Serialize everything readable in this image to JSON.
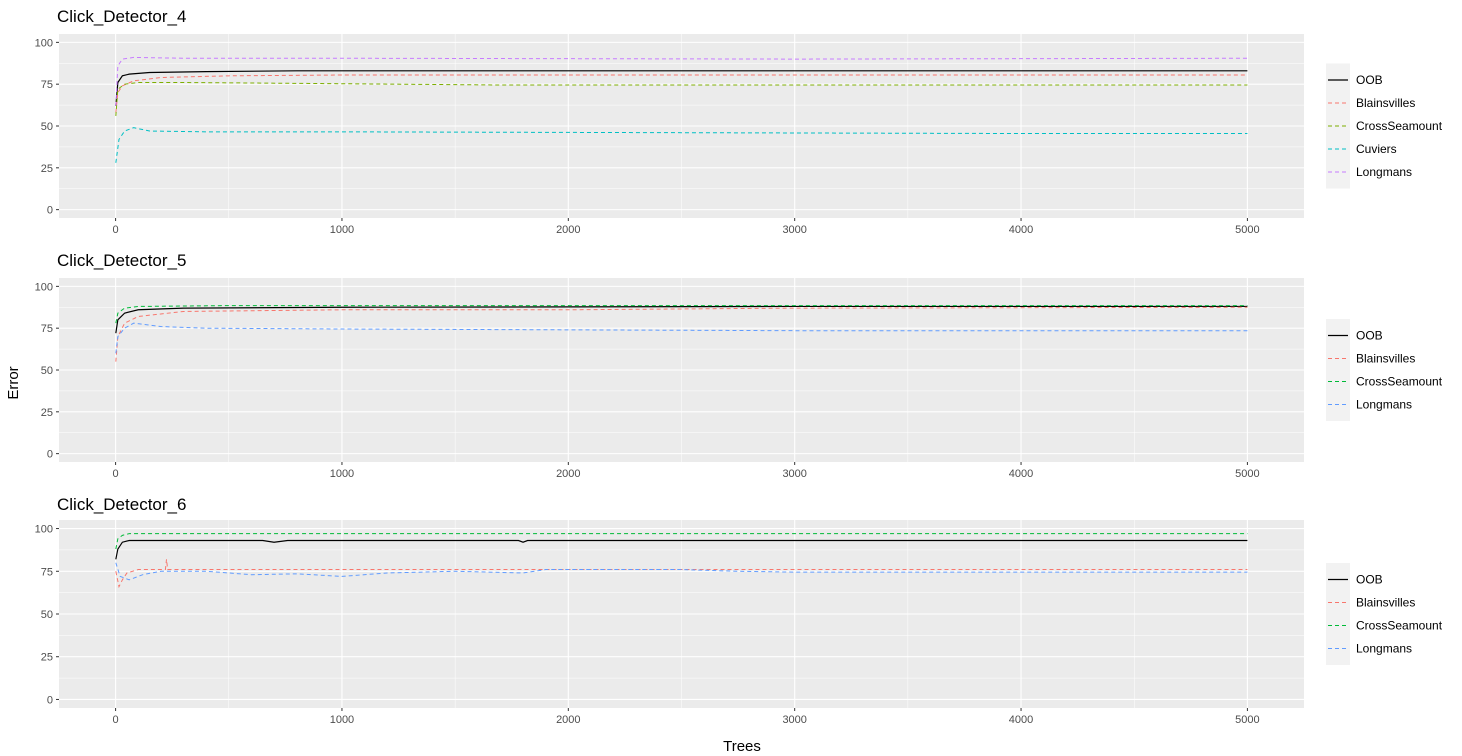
{
  "axes": {
    "xlabel": "Trees",
    "ylabel": "Error"
  },
  "colors": {
    "OOB": "#000000",
    "Blainsvilles": "#F8766D",
    "CrossSeamount": "#7CAE00",
    "CrossSeamount_3class": "#00BA38",
    "Cuviers": "#00BFC4",
    "Longmans": "#C77CFF",
    "Longmans_3class": "#619CFF",
    "panel_bg": "#EBEBEB",
    "grid": "#FFFFFF"
  },
  "chart_data": [
    {
      "type": "line",
      "title": "Click_Detector_4",
      "xlim": [
        -250,
        5250
      ],
      "ylim": [
        -5,
        105
      ],
      "x_ticks": [
        0,
        1000,
        2000,
        3000,
        4000,
        5000
      ],
      "y_ticks": [
        0,
        25,
        50,
        75,
        100
      ],
      "x_tick_labels": [
        "0",
        "1000",
        "2000",
        "3000",
        "4000",
        "5000"
      ],
      "y_tick_labels": [
        "0",
        "25",
        "50",
        "75",
        "100"
      ],
      "legend": [
        "OOB",
        "Blainsvilles",
        "CrossSeamount",
        "Cuviers",
        "Longmans"
      ],
      "series": [
        {
          "name": "OOB",
          "color": "#000000",
          "dash": "solid",
          "points": [
            [
              1,
              62
            ],
            [
              10,
              76
            ],
            [
              30,
              80
            ],
            [
              60,
              81
            ],
            [
              150,
              82
            ],
            [
              400,
              82.5
            ],
            [
              800,
              83
            ],
            [
              1500,
              83
            ],
            [
              5000,
              83
            ]
          ]
        },
        {
          "name": "Blainsvilles",
          "color": "#F8766D",
          "dash": "dashed",
          "points": [
            [
              1,
              58
            ],
            [
              10,
              70
            ],
            [
              30,
              74
            ],
            [
              80,
              77
            ],
            [
              200,
              79
            ],
            [
              500,
              80
            ],
            [
              1000,
              80.5
            ],
            [
              5000,
              80.5
            ]
          ]
        },
        {
          "name": "CrossSeamount",
          "color": "#7CAE00",
          "dash": "dashed",
          "points": [
            [
              1,
              56
            ],
            [
              10,
              72
            ],
            [
              40,
              75
            ],
            [
              100,
              76
            ],
            [
              300,
              76
            ],
            [
              800,
              75.5
            ],
            [
              1700,
              74.5
            ],
            [
              3000,
              74.5
            ],
            [
              5000,
              74.5
            ]
          ]
        },
        {
          "name": "Cuviers",
          "color": "#00BFC4",
          "dash": "dashed",
          "points": [
            [
              1,
              28
            ],
            [
              15,
              42
            ],
            [
              40,
              47
            ],
            [
              80,
              49
            ],
            [
              150,
              47
            ],
            [
              400,
              46.5
            ],
            [
              1000,
              46.5
            ],
            [
              2500,
              46
            ],
            [
              4000,
              45.5
            ],
            [
              5000,
              45.5
            ]
          ]
        },
        {
          "name": "Longmans",
          "color": "#C77CFF",
          "dash": "dashed",
          "points": [
            [
              1,
              62
            ],
            [
              10,
              86
            ],
            [
              30,
              90
            ],
            [
              80,
              91
            ],
            [
              300,
              90.5
            ],
            [
              1000,
              90.5
            ],
            [
              3000,
              90
            ],
            [
              5000,
              90.5
            ]
          ]
        }
      ]
    },
    {
      "type": "line",
      "title": "Click_Detector_5",
      "xlim": [
        -250,
        5250
      ],
      "ylim": [
        -5,
        105
      ],
      "x_ticks": [
        0,
        1000,
        2000,
        3000,
        4000,
        5000
      ],
      "y_ticks": [
        0,
        25,
        50,
        75,
        100
      ],
      "x_tick_labels": [
        "0",
        "1000",
        "2000",
        "3000",
        "4000",
        "5000"
      ],
      "y_tick_labels": [
        "0",
        "25",
        "50",
        "75",
        "100"
      ],
      "legend": [
        "OOB",
        "Blainsvilles",
        "CrossSeamount",
        "Longmans"
      ],
      "series": [
        {
          "name": "OOB",
          "color": "#000000",
          "dash": "solid",
          "points": [
            [
              1,
              72
            ],
            [
              10,
              80
            ],
            [
              40,
              84
            ],
            [
              100,
              86
            ],
            [
              300,
              87
            ],
            [
              1000,
              87.5
            ],
            [
              3000,
              88
            ],
            [
              5000,
              88
            ]
          ]
        },
        {
          "name": "Blainsvilles",
          "color": "#F8766D",
          "dash": "dashed",
          "points": [
            [
              1,
              55
            ],
            [
              10,
              70
            ],
            [
              40,
              78
            ],
            [
              100,
              82
            ],
            [
              300,
              85
            ],
            [
              1000,
              86
            ],
            [
              2000,
              86
            ],
            [
              3000,
              87
            ],
            [
              5000,
              87.5
            ]
          ]
        },
        {
          "name": "CrossSeamount",
          "color": "#00BA38",
          "dash": "dashed",
          "points": [
            [
              1,
              78
            ],
            [
              10,
              84
            ],
            [
              40,
              87
            ],
            [
              100,
              88
            ],
            [
              500,
              88.5
            ],
            [
              2000,
              88.5
            ],
            [
              5000,
              88.5
            ]
          ]
        },
        {
          "name": "Longmans",
          "color": "#619CFF",
          "dash": "dashed",
          "points": [
            [
              1,
              60
            ],
            [
              10,
              70
            ],
            [
              40,
              75
            ],
            [
              80,
              78
            ],
            [
              200,
              76
            ],
            [
              400,
              75
            ],
            [
              1000,
              74.5
            ],
            [
              2000,
              74
            ],
            [
              3000,
              73.5
            ],
            [
              5000,
              73.5
            ]
          ]
        }
      ]
    },
    {
      "type": "line",
      "title": "Click_Detector_6",
      "xlim": [
        -250,
        5250
      ],
      "ylim": [
        -5,
        105
      ],
      "x_ticks": [
        0,
        1000,
        2000,
        3000,
        4000,
        5000
      ],
      "y_ticks": [
        0,
        25,
        50,
        75,
        100
      ],
      "x_tick_labels": [
        "0",
        "1000",
        "2000",
        "3000",
        "4000",
        "5000"
      ],
      "y_tick_labels": [
        "0",
        "25",
        "50",
        "75",
        "100"
      ],
      "legend": [
        "OOB",
        "Blainsvilles",
        "CrossSeamount",
        "Longmans"
      ],
      "series": [
        {
          "name": "OOB",
          "color": "#000000",
          "dash": "solid",
          "points": [
            [
              1,
              82
            ],
            [
              10,
              88
            ],
            [
              30,
              92
            ],
            [
              60,
              93
            ],
            [
              300,
              93
            ],
            [
              650,
              93
            ],
            [
              700,
              92
            ],
            [
              760,
              93
            ],
            [
              1000,
              93
            ],
            [
              1780,
              93
            ],
            [
              1800,
              92
            ],
            [
              1820,
              93
            ],
            [
              5000,
              93
            ]
          ]
        },
        {
          "name": "Blainsvilles",
          "color": "#F8766D",
          "dash": "dashed",
          "points": [
            [
              1,
              75
            ],
            [
              15,
              66
            ],
            [
              30,
              70
            ],
            [
              50,
              74
            ],
            [
              100,
              76
            ],
            [
              220,
              76
            ],
            [
              225,
              82
            ],
            [
              230,
              76
            ],
            [
              1000,
              76
            ],
            [
              5000,
              76
            ]
          ]
        },
        {
          "name": "CrossSeamount",
          "color": "#00BA38",
          "dash": "dashed",
          "points": [
            [
              1,
              88
            ],
            [
              10,
              94
            ],
            [
              30,
              96
            ],
            [
              60,
              97
            ],
            [
              1000,
              97
            ],
            [
              5000,
              97
            ]
          ]
        },
        {
          "name": "Longmans",
          "color": "#619CFF",
          "dash": "dashed",
          "points": [
            [
              1,
              80
            ],
            [
              20,
              72
            ],
            [
              60,
              70
            ],
            [
              120,
              73
            ],
            [
              200,
              75
            ],
            [
              400,
              75
            ],
            [
              600,
              73
            ],
            [
              800,
              73.5
            ],
            [
              1000,
              72
            ],
            [
              1200,
              74
            ],
            [
              1500,
              75
            ],
            [
              1800,
              74
            ],
            [
              1900,
              76
            ],
            [
              2500,
              76
            ],
            [
              2750,
              75
            ],
            [
              3000,
              74.5
            ],
            [
              5000,
              74.5
            ]
          ]
        }
      ]
    }
  ]
}
